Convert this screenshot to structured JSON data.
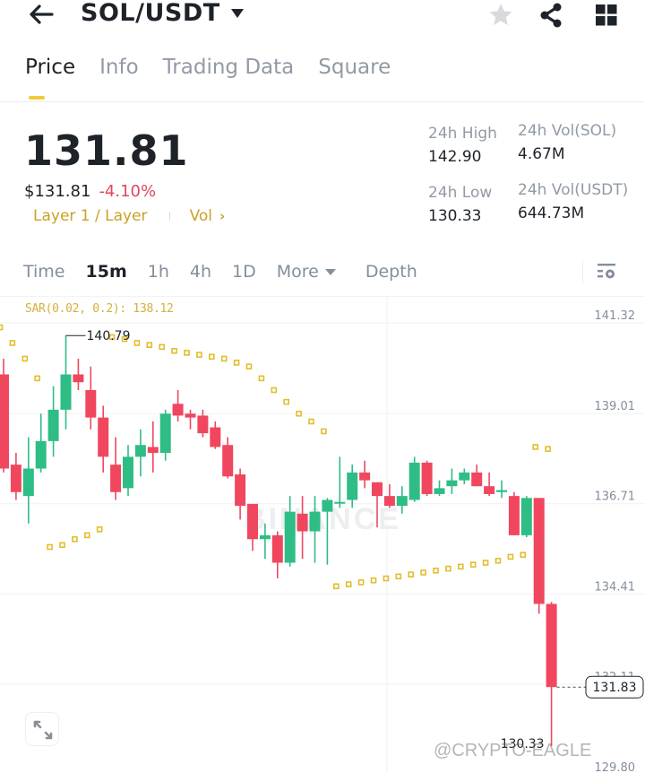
{
  "header": {
    "pair": "SOL/USDT",
    "icons": [
      "back-arrow-icon",
      "star-icon",
      "share-icon",
      "grid-icon"
    ]
  },
  "tabs": [
    {
      "label": "Price",
      "active": true
    },
    {
      "label": "Info",
      "active": false
    },
    {
      "label": "Trading Data",
      "active": false
    },
    {
      "label": "Square",
      "active": false
    }
  ],
  "ticker": {
    "last_price": "131.81",
    "usd_price": "$131.81",
    "change_pct": "-4.10%",
    "tag": "Layer 1 / Layer",
    "vol_link": "Vol",
    "high_label": "24h High",
    "high_value": "142.90",
    "low_label": "24h Low",
    "low_value": "130.33",
    "vol_sol_label": "24h Vol(SOL)",
    "vol_sol_value": "4.67M",
    "vol_usdt_label": "24h Vol(USDT)",
    "vol_usdt_value": "644.73M"
  },
  "intervals": {
    "items": [
      "Time",
      "15m",
      "1h",
      "4h",
      "1D"
    ],
    "active": "15m",
    "more": "More",
    "depth": "Depth"
  },
  "colors": {
    "up": "#2ebd85",
    "down": "#f0475f",
    "sar": "#e2bd2c",
    "accent": "#f0cc3c",
    "grid": "#f0f1f3"
  },
  "chart_data": {
    "type": "candlestick",
    "interval": "15m",
    "indicator_label": "SAR(0.02, 0.2): 138.12",
    "y_ticks": [
      "141.32",
      "139.01",
      "136.71",
      "134.41",
      "132.11",
      "129.80"
    ],
    "ylim": [
      129.8,
      141.32
    ],
    "max_label": "140.79",
    "min_label": "130.33",
    "current_price_label": "131.83",
    "watermark": "BINANCE",
    "candles": [
      {
        "o": 139.8,
        "c": 137.4,
        "h": 140.2,
        "l": 137.3
      },
      {
        "o": 137.5,
        "c": 136.8,
        "h": 137.8,
        "l": 136.6
      },
      {
        "o": 136.7,
        "c": 137.4,
        "h": 138.2,
        "l": 136.0
      },
      {
        "o": 137.4,
        "c": 138.1,
        "h": 138.8,
        "l": 137.3
      },
      {
        "o": 138.1,
        "c": 138.9,
        "h": 139.5,
        "l": 137.7
      },
      {
        "o": 138.9,
        "c": 139.8,
        "h": 140.79,
        "l": 138.4
      },
      {
        "o": 139.8,
        "c": 139.6,
        "h": 140.2,
        "l": 139.4
      },
      {
        "o": 139.4,
        "c": 138.7,
        "h": 140.0,
        "l": 138.4
      },
      {
        "o": 138.7,
        "c": 137.7,
        "h": 139.0,
        "l": 137.3
      },
      {
        "o": 137.5,
        "c": 136.8,
        "h": 138.2,
        "l": 136.6
      },
      {
        "o": 136.9,
        "c": 137.7,
        "h": 138.0,
        "l": 136.7
      },
      {
        "o": 137.7,
        "c": 138.0,
        "h": 138.4,
        "l": 137.2
      },
      {
        "o": 137.95,
        "c": 137.8,
        "h": 138.6,
        "l": 137.3
      },
      {
        "o": 137.8,
        "c": 138.8,
        "h": 138.9,
        "l": 137.6
      },
      {
        "o": 139.05,
        "c": 138.75,
        "h": 139.4,
        "l": 138.6
      },
      {
        "o": 138.8,
        "c": 138.7,
        "h": 138.9,
        "l": 138.4
      },
      {
        "o": 138.75,
        "c": 138.3,
        "h": 138.9,
        "l": 138.2
      },
      {
        "o": 138.45,
        "c": 137.95,
        "h": 138.6,
        "l": 137.9
      },
      {
        "o": 138.0,
        "c": 137.2,
        "h": 138.2,
        "l": 137.15
      },
      {
        "o": 137.25,
        "c": 136.45,
        "h": 137.4,
        "l": 136.1
      },
      {
        "o": 136.5,
        "c": 135.6,
        "h": 136.5,
        "l": 135.3
      },
      {
        "o": 135.6,
        "c": 135.7,
        "h": 136.0,
        "l": 135.1
      },
      {
        "o": 135.7,
        "c": 135.0,
        "h": 135.8,
        "l": 134.6
      },
      {
        "o": 135.0,
        "c": 136.3,
        "h": 136.7,
        "l": 134.9
      },
      {
        "o": 136.25,
        "c": 135.8,
        "h": 136.7,
        "l": 135.1
      },
      {
        "o": 135.8,
        "c": 136.3,
        "h": 136.7,
        "l": 135.0
      },
      {
        "o": 136.3,
        "c": 136.6,
        "h": 136.65,
        "l": 134.95
      },
      {
        "o": 136.55,
        "c": 136.55,
        "h": 137.7,
        "l": 136.4
      },
      {
        "o": 136.6,
        "c": 137.3,
        "h": 137.5,
        "l": 136.4
      },
      {
        "o": 137.3,
        "c": 137.1,
        "h": 137.6,
        "l": 136.9
      },
      {
        "o": 137.05,
        "c": 136.7,
        "h": 137.05,
        "l": 135.9
      },
      {
        "o": 136.7,
        "c": 136.45,
        "h": 137.0,
        "l": 136.4
      },
      {
        "o": 136.45,
        "c": 136.7,
        "h": 136.95,
        "l": 136.25
      },
      {
        "o": 136.6,
        "c": 137.55,
        "h": 137.7,
        "l": 136.55
      },
      {
        "o": 137.55,
        "c": 136.75,
        "h": 137.6,
        "l": 136.7
      },
      {
        "o": 136.75,
        "c": 136.9,
        "h": 137.1,
        "l": 136.7
      },
      {
        "o": 136.95,
        "c": 137.1,
        "h": 137.4,
        "l": 136.75
      },
      {
        "o": 137.1,
        "c": 137.3,
        "h": 137.4,
        "l": 137.0
      },
      {
        "o": 137.3,
        "c": 136.95,
        "h": 137.5,
        "l": 136.95
      },
      {
        "o": 136.95,
        "c": 136.75,
        "h": 137.3,
        "l": 136.7
      },
      {
        "o": 136.8,
        "c": 136.85,
        "h": 137.1,
        "l": 136.65
      },
      {
        "o": 136.7,
        "c": 135.7,
        "h": 136.8,
        "l": 135.7
      },
      {
        "o": 135.7,
        "c": 136.65,
        "h": 136.7,
        "l": 135.65
      },
      {
        "o": 136.65,
        "c": 133.95,
        "h": 136.65,
        "l": 133.7
      },
      {
        "o": 133.95,
        "c": 131.83,
        "h": 134.0,
        "l": 130.33
      }
    ],
    "sar_points": [
      {
        "i": 0,
        "v": 141.0
      },
      {
        "i": 1,
        "v": 140.6
      },
      {
        "i": 2,
        "v": 140.2
      },
      {
        "i": 3,
        "v": 139.7
      },
      {
        "i": 4,
        "v": 135.4
      },
      {
        "i": 5,
        "v": 135.45
      },
      {
        "i": 6,
        "v": 135.6
      },
      {
        "i": 7,
        "v": 135.7
      },
      {
        "i": 8,
        "v": 135.85
      },
      {
        "i": 9,
        "v": 140.75
      },
      {
        "i": 10,
        "v": 140.7
      },
      {
        "i": 11,
        "v": 140.6
      },
      {
        "i": 12,
        "v": 140.55
      },
      {
        "i": 13,
        "v": 140.5
      },
      {
        "i": 14,
        "v": 140.4
      },
      {
        "i": 15,
        "v": 140.35
      },
      {
        "i": 16,
        "v": 140.3
      },
      {
        "i": 17,
        "v": 140.25
      },
      {
        "i": 18,
        "v": 140.2
      },
      {
        "i": 19,
        "v": 140.1
      },
      {
        "i": 20,
        "v": 140.0
      },
      {
        "i": 21,
        "v": 139.7
      },
      {
        "i": 22,
        "v": 139.4
      },
      {
        "i": 23,
        "v": 139.1
      },
      {
        "i": 24,
        "v": 138.8
      },
      {
        "i": 25,
        "v": 138.6
      },
      {
        "i": 26,
        "v": 138.35
      },
      {
        "i": 27,
        "v": 134.4
      },
      {
        "i": 28,
        "v": 134.45
      },
      {
        "i": 29,
        "v": 134.5
      },
      {
        "i": 30,
        "v": 134.55
      },
      {
        "i": 31,
        "v": 134.6
      },
      {
        "i": 32,
        "v": 134.65
      },
      {
        "i": 33,
        "v": 134.7
      },
      {
        "i": 34,
        "v": 134.75
      },
      {
        "i": 35,
        "v": 134.8
      },
      {
        "i": 36,
        "v": 134.85
      },
      {
        "i": 37,
        "v": 134.9
      },
      {
        "i": 38,
        "v": 134.95
      },
      {
        "i": 39,
        "v": 135.0
      },
      {
        "i": 40,
        "v": 135.05
      },
      {
        "i": 41,
        "v": 135.15
      },
      {
        "i": 42,
        "v": 135.2
      },
      {
        "i": 43,
        "v": 137.95
      },
      {
        "i": 44,
        "v": 137.9
      }
    ]
  },
  "watermark_text": "@CRYPTO-EAGLE"
}
